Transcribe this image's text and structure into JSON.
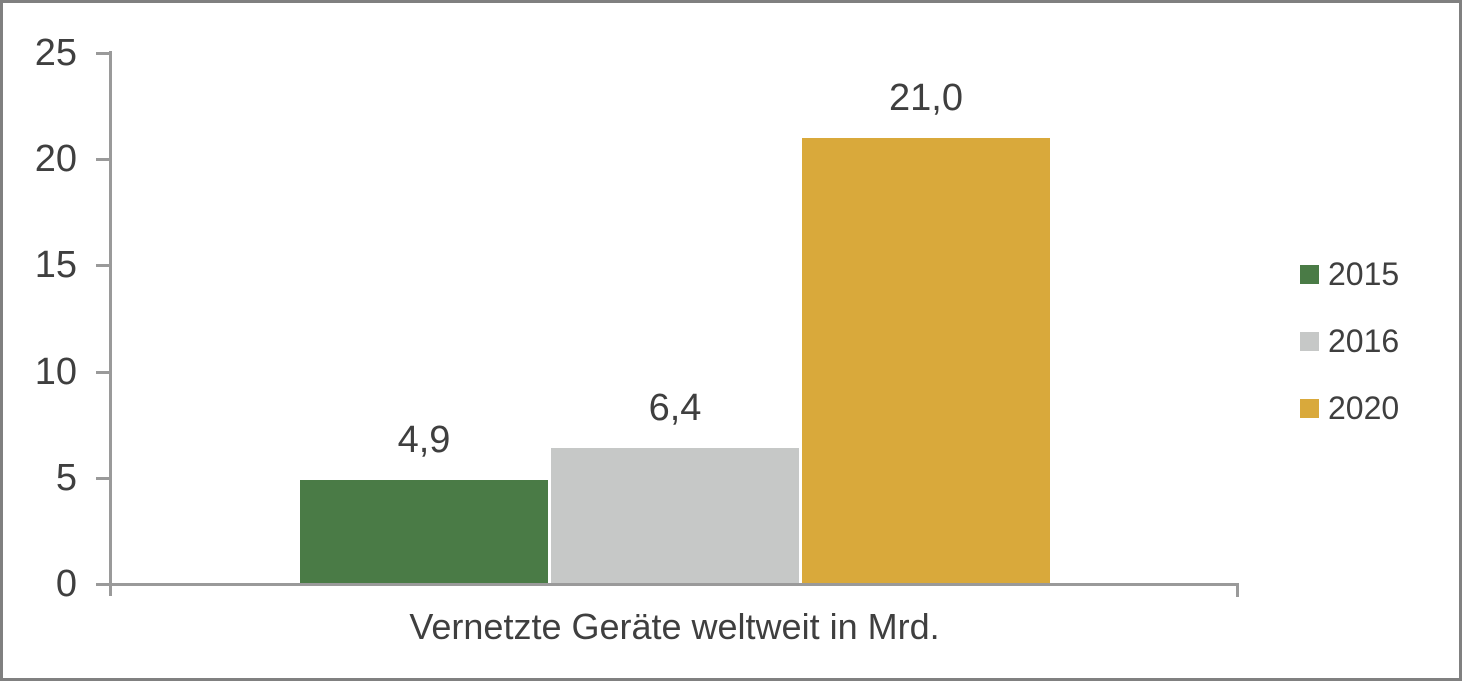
{
  "chart_data": {
    "type": "bar",
    "title": "",
    "xlabel": "Vernetzte Geräte weltweit in Mrd.",
    "ylabel": "",
    "ylim": [
      0,
      25
    ],
    "yticks": [
      "0",
      "5",
      "10",
      "15",
      "20",
      "25"
    ],
    "grid": false,
    "legend_position": "right",
    "categories": [
      "Vernetzte Geräte weltweit in Mrd."
    ],
    "series": [
      {
        "name": "2015",
        "values": [
          4.9
        ],
        "value_label": "4,9",
        "color": "#4A7B46"
      },
      {
        "name": "2016",
        "values": [
          6.4
        ],
        "value_label": "6,4",
        "color": "#C6C8C7"
      },
      {
        "name": "2020",
        "values": [
          21.0
        ],
        "value_label": "21,0",
        "color": "#D9A93B"
      }
    ]
  },
  "colors": {
    "text": "#3F3F3F",
    "axis": "#9A9A9A",
    "frame_border": "#808080",
    "background": "#FFFFFF"
  }
}
